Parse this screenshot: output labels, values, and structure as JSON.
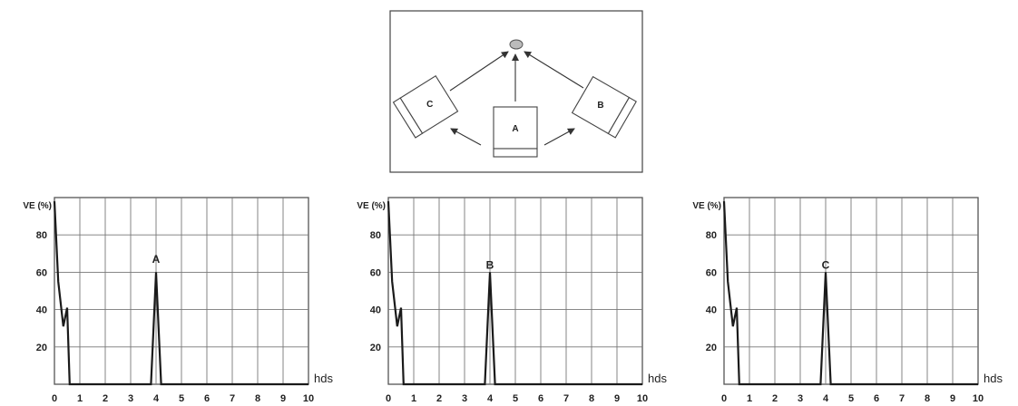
{
  "diagram": {
    "labels": {
      "center": "A",
      "right": "B",
      "left": "C"
    }
  },
  "chart_data": [
    {
      "type": "line",
      "ylabel": "VE (%)",
      "xlabel": "hds",
      "xlim": [
        0,
        10
      ],
      "ylim": [
        0,
        100
      ],
      "xticks": [
        "0",
        "1",
        "2",
        "3",
        "4",
        "5",
        "6",
        "7",
        "8",
        "9",
        "10"
      ],
      "yticks": [
        "20",
        "40",
        "60",
        "80"
      ],
      "grid": true,
      "annotation": {
        "text": "A",
        "x": 4,
        "y": 65
      },
      "series": [
        {
          "x": [
            0,
            0.15,
            0.35,
            0.5,
            0.6,
            0.6,
            3.8,
            4,
            4.2,
            10
          ],
          "y": [
            98,
            55,
            31,
            41,
            0,
            0,
            0,
            60,
            0,
            0
          ]
        }
      ]
    },
    {
      "type": "line",
      "ylabel": "VE (%)",
      "xlabel": "hds",
      "xlim": [
        0,
        10
      ],
      "ylim": [
        0,
        100
      ],
      "xticks": [
        "0",
        "1",
        "2",
        "3",
        "4",
        "5",
        "6",
        "7",
        "8",
        "9",
        "10"
      ],
      "yticks": [
        "20",
        "40",
        "60",
        "80"
      ],
      "grid": true,
      "annotation": {
        "text": "B",
        "x": 4,
        "y": 62
      },
      "series": [
        {
          "x": [
            0,
            0.15,
            0.35,
            0.5,
            0.6,
            0.6,
            3.8,
            4,
            4.2,
            10
          ],
          "y": [
            98,
            55,
            31,
            41,
            0,
            0,
            0,
            60,
            0,
            0
          ]
        }
      ]
    },
    {
      "type": "line",
      "ylabel": "VE (%)",
      "xlabel": "hds",
      "xlim": [
        0,
        10
      ],
      "ylim": [
        0,
        100
      ],
      "xticks": [
        "0",
        "1",
        "2",
        "3",
        "4",
        "5",
        "6",
        "7",
        "8",
        "9",
        "10"
      ],
      "yticks": [
        "20",
        "40",
        "60",
        "80"
      ],
      "grid": true,
      "annotation": {
        "text": "C",
        "x": 4,
        "y": 62
      },
      "series": [
        {
          "x": [
            0,
            0.15,
            0.35,
            0.5,
            0.6,
            0.6,
            3.8,
            4,
            4.2,
            10
          ],
          "y": [
            98,
            55,
            31,
            41,
            0,
            0,
            0,
            60,
            0,
            0
          ]
        }
      ]
    }
  ]
}
